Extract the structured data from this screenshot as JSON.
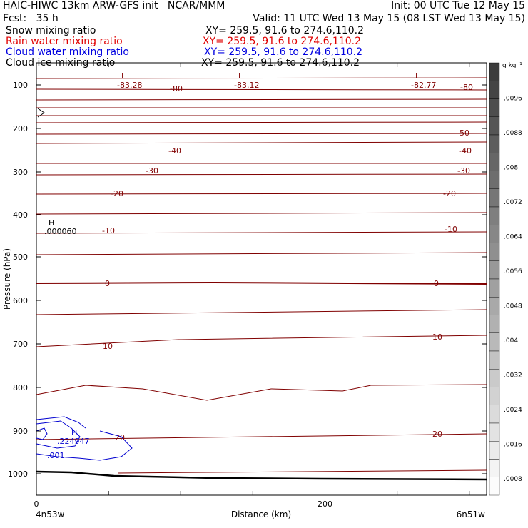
{
  "header": {
    "title_left": "HAIC-HIWC 13km ARW-GFS init   NCAR/MMM",
    "init_right": "Init: 00 UTC Tue 12 May 15",
    "fcst": "Fcst:   35 h",
    "valid": "Valid: 11 UTC Wed 13 May 15 (08 LST Wed 13 May 15)",
    "fields": [
      {
        "label": "Snow mixing ratio",
        "xy": "XY= 259.5, 91.6 to 274.6,110.2",
        "color": "#000000"
      },
      {
        "label": "Rain water mixing ratio",
        "xy": "XY= 259.5, 91.6 to 274.6,110.2",
        "color": "#e00000"
      },
      {
        "label": "Cloud water mixing ratio",
        "xy": "XY= 259.5, 91.6 to 274.6,110.2",
        "color": "#0000e0"
      },
      {
        "label": "Cloud ice mixing ratio",
        "xy": "XY= 259.5, 91.6 to 274.6,110.2",
        "color": "#000000"
      }
    ]
  },
  "chart_data": {
    "type": "line",
    "ylabel": "Pressure (hPa)",
    "xlabel": "Distance (km)",
    "x_left_label": "4n53w",
    "x_right_label": "6n51w",
    "x_ticks": [
      0,
      200
    ],
    "xlim": [
      0,
      312
    ],
    "y_ticks": [
      100,
      200,
      300,
      400,
      500,
      600,
      700,
      800,
      900,
      1000
    ],
    "ylim": [
      50,
      1050
    ],
    "y_scale": "log",
    "colorbar": {
      "unit": "g kg⁻¹",
      "labels": [
        ".0096",
        ".0088",
        ".008",
        ".0072",
        ".0064",
        ".0056",
        ".0048",
        ".004",
        ".0032",
        ".0024",
        ".0016",
        ".0008"
      ]
    },
    "temperature_contour_labels": [
      "-83.28",
      "-80",
      "-83.12",
      "-82.77",
      "-80",
      "-50",
      "-40",
      "-40",
      "-30",
      "-30",
      "-20",
      "-20",
      "-10",
      "-10",
      "0",
      "0",
      "10",
      "10",
      "20",
      "20"
    ],
    "extrema": [
      {
        "kind": "L",
        "value": "-83.28"
      },
      {
        "kind": "L",
        "value": "-83.12"
      },
      {
        "kind": "L",
        "value": "-82.77"
      },
      {
        "kind": "H",
        "value": ".000060"
      },
      {
        "kind": "H",
        "value": ".224947"
      }
    ],
    "cloud_water_labels": [
      ".001"
    ],
    "colors": {
      "temperature": "#800000",
      "cloud_water": "#0000d0",
      "terrain": "#000000"
    }
  }
}
